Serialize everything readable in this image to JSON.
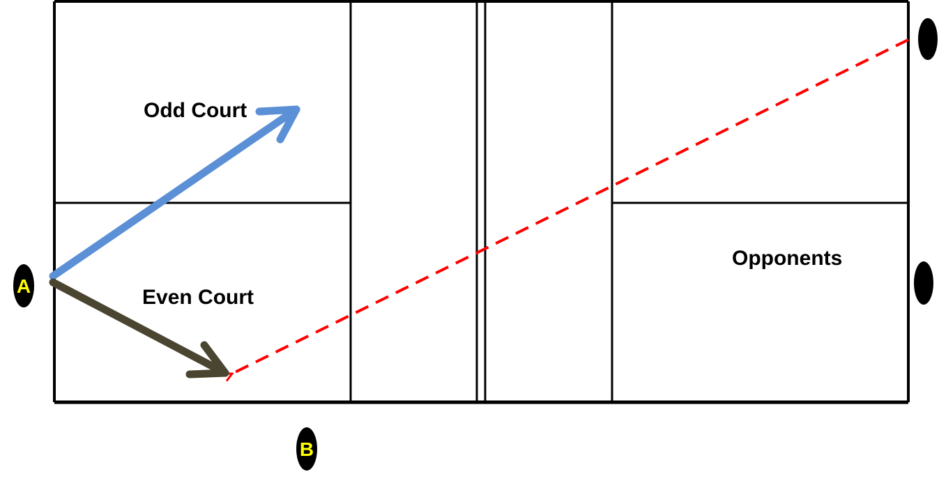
{
  "labels": {
    "odd_court": "Odd Court",
    "even_court": "Even Court",
    "opponents": "Opponents"
  },
  "players": {
    "a": "A",
    "b": "B"
  },
  "colors": {
    "court_lines": "#000000",
    "serve_to_odd_arrow": "#5B8FD6",
    "serve_to_even_arrow": "#4A4530",
    "return_path": "#FF0000",
    "player_fill": "#000000",
    "player_label": "#FFFF00"
  }
}
